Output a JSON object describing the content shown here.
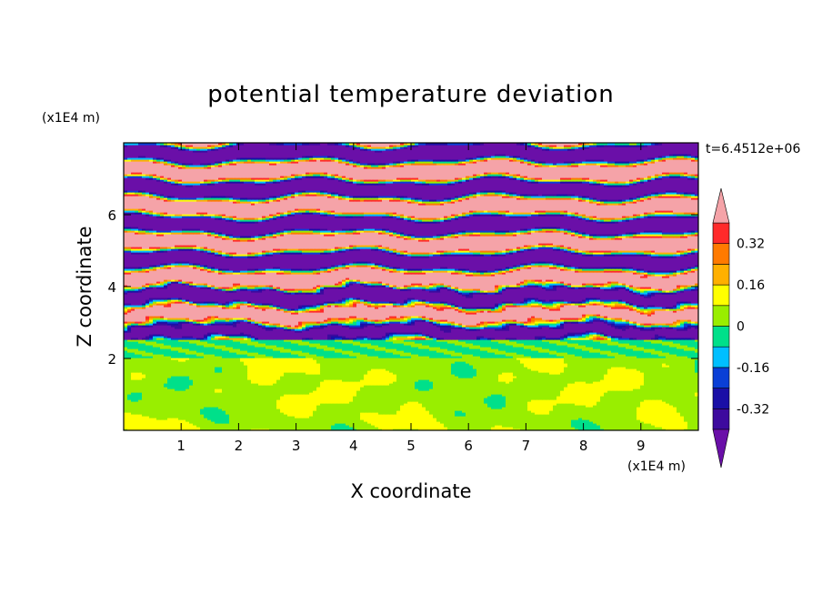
{
  "chart_data": {
    "type": "heatmap",
    "title": "potential temperature deviation",
    "xlabel": "X coordinate",
    "ylabel": "Z coordinate",
    "x_unit": "(x1E4 m)",
    "y_unit": "(x1E4 m)",
    "time_label": "t=6.4512e+06",
    "xlim": [
      0,
      10
    ],
    "ylim": [
      0,
      8
    ],
    "x_ticks": [
      "1",
      "2",
      "3",
      "4",
      "5",
      "6",
      "7",
      "8",
      "9"
    ],
    "y_ticks": [
      "2",
      "4",
      "6"
    ],
    "colorbar": {
      "levels": [
        -0.48,
        -0.4,
        -0.32,
        -0.24,
        -0.16,
        -0.08,
        0,
        0.08,
        0.16,
        0.24,
        0.32,
        0.4,
        0.48
      ],
      "colors": [
        "#6a0fa8",
        "#3d0a9e",
        "#1a0fa6",
        "#0a3fd6",
        "#00bfff",
        "#00e08a",
        "#99ee00",
        "#ffff00",
        "#ffb000",
        "#ff7a00",
        "#ff2a2a",
        "#f5a3a8"
      ],
      "tick_labels": [
        "0.32",
        "0.16",
        "0",
        "-0.16",
        "-0.32"
      ],
      "tick_values": [
        0.32,
        0.16,
        0,
        -0.16,
        -0.32
      ],
      "extend": "both"
    },
    "legend_position": "right",
    "grid": false
  }
}
